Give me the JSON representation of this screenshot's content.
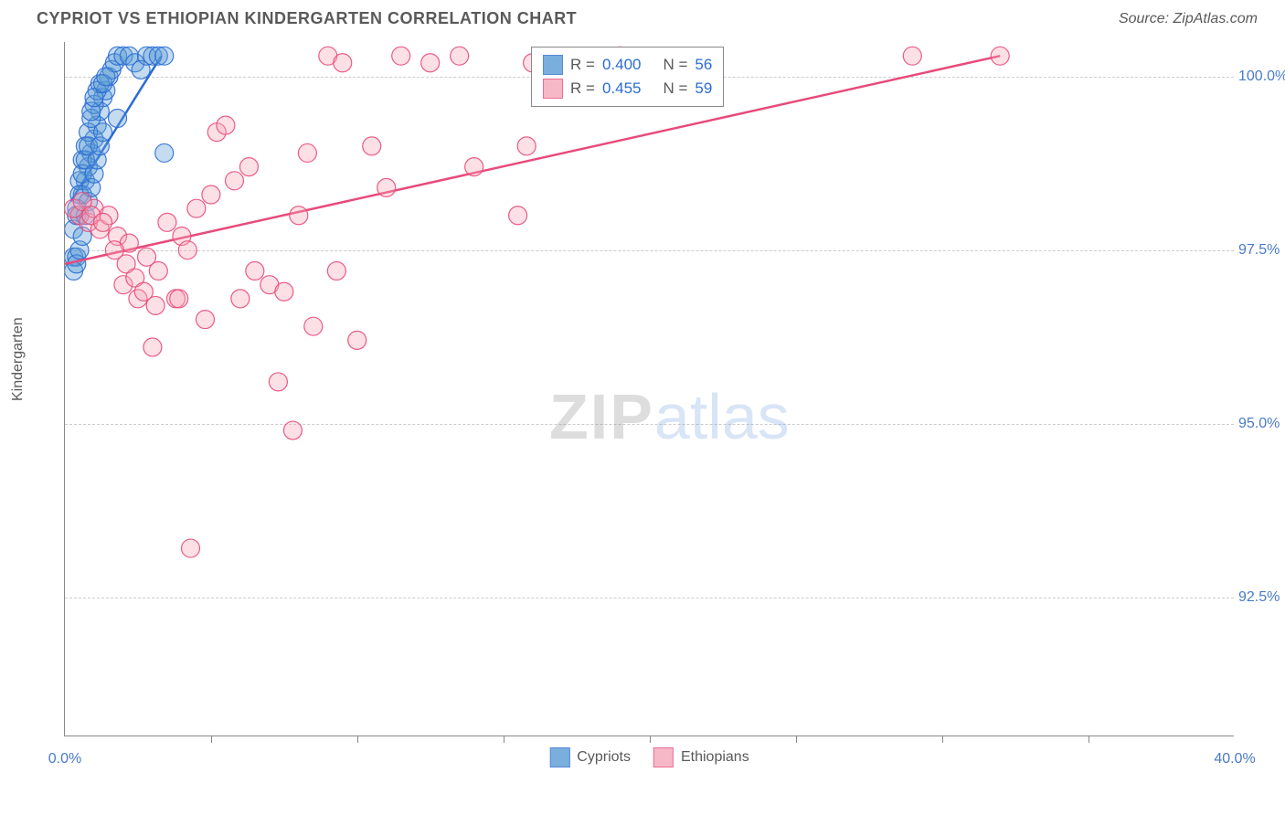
{
  "header": {
    "title": "CYPRIOT VS ETHIOPIAN KINDERGARTEN CORRELATION CHART",
    "source": "Source: ZipAtlas.com"
  },
  "chart": {
    "type": "scatter",
    "y_axis_label": "Kindergarten",
    "background_color": "#ffffff",
    "grid_color": "#cccccc",
    "axis_color": "#888888",
    "tick_label_color": "#4a7bc8",
    "text_color": "#5a5a5a",
    "xlim": [
      0.0,
      40.0
    ],
    "ylim": [
      90.5,
      100.5
    ],
    "x_ticks": [
      0.0,
      40.0
    ],
    "x_tick_labels": [
      "0.0%",
      "40.0%"
    ],
    "x_minor_ticks": [
      5,
      10,
      15,
      20,
      25,
      30,
      35
    ],
    "y_ticks": [
      92.5,
      95.0,
      97.5,
      100.0
    ],
    "y_tick_labels": [
      "92.5%",
      "95.0%",
      "97.5%",
      "100.0%"
    ],
    "marker_radius": 10,
    "marker_fill_opacity": 0.35,
    "marker_stroke_opacity": 0.9,
    "line_width": 2.5,
    "series": [
      {
        "name": "Cypriots",
        "color": "#5a9bd5",
        "stroke": "#2b6cd4",
        "stats": {
          "R_label": "R =",
          "R": "0.400",
          "N_label": "N =",
          "N": "56"
        },
        "trend": {
          "x1": 0.2,
          "y1": 98.2,
          "x2": 3.3,
          "y2": 100.3
        },
        "points": [
          [
            0.3,
            97.4
          ],
          [
            0.4,
            97.4
          ],
          [
            0.5,
            98.0
          ],
          [
            0.6,
            98.3
          ],
          [
            0.7,
            98.5
          ],
          [
            0.8,
            98.7
          ],
          [
            0.9,
            98.9
          ],
          [
            1.0,
            99.1
          ],
          [
            1.1,
            99.3
          ],
          [
            1.2,
            99.5
          ],
          [
            1.3,
            99.7
          ],
          [
            1.4,
            99.8
          ],
          [
            1.5,
            100.0
          ],
          [
            1.6,
            100.1
          ],
          [
            1.7,
            100.2
          ],
          [
            1.8,
            100.3
          ],
          [
            2.0,
            100.3
          ],
          [
            2.2,
            100.3
          ],
          [
            2.4,
            100.2
          ],
          [
            2.6,
            100.1
          ],
          [
            2.8,
            100.3
          ],
          [
            3.0,
            100.3
          ],
          [
            3.2,
            100.3
          ],
          [
            3.4,
            100.3
          ],
          [
            0.5,
            98.5
          ],
          [
            0.6,
            98.8
          ],
          [
            0.7,
            99.0
          ],
          [
            0.8,
            99.2
          ],
          [
            0.9,
            99.4
          ],
          [
            1.0,
            99.6
          ],
          [
            1.1,
            99.8
          ],
          [
            1.2,
            99.9
          ],
          [
            0.4,
            98.1
          ],
          [
            0.5,
            98.3
          ],
          [
            0.6,
            98.6
          ],
          [
            0.7,
            98.8
          ],
          [
            0.3,
            97.8
          ],
          [
            0.4,
            98.0
          ],
          [
            0.8,
            99.0
          ],
          [
            0.9,
            99.5
          ],
          [
            1.0,
            99.7
          ],
          [
            1.3,
            99.9
          ],
          [
            1.4,
            100.0
          ],
          [
            1.8,
            99.4
          ],
          [
            3.4,
            98.9
          ],
          [
            0.3,
            97.2
          ],
          [
            0.4,
            97.3
          ],
          [
            0.5,
            97.5
          ],
          [
            0.6,
            97.7
          ],
          [
            0.7,
            98.0
          ],
          [
            0.8,
            98.2
          ],
          [
            0.9,
            98.4
          ],
          [
            1.0,
            98.6
          ],
          [
            1.1,
            98.8
          ],
          [
            1.2,
            99.0
          ],
          [
            1.3,
            99.2
          ]
        ]
      },
      {
        "name": "Ethiopians",
        "color": "#f5a6b8",
        "stroke": "#e84a7a",
        "stats": {
          "R_label": "R =",
          "R": "0.455",
          "N_label": "N =",
          "N": "59"
        },
        "trend": {
          "x1": 0.0,
          "y1": 97.3,
          "x2": 32.0,
          "y2": 100.3
        },
        "points": [
          [
            0.5,
            98.0
          ],
          [
            0.8,
            97.9
          ],
          [
            1.0,
            98.1
          ],
          [
            1.2,
            97.8
          ],
          [
            1.5,
            98.0
          ],
          [
            1.8,
            97.7
          ],
          [
            2.0,
            97.0
          ],
          [
            2.2,
            97.6
          ],
          [
            2.5,
            96.8
          ],
          [
            2.8,
            97.4
          ],
          [
            3.0,
            96.1
          ],
          [
            3.2,
            97.2
          ],
          [
            3.5,
            97.9
          ],
          [
            3.8,
            96.8
          ],
          [
            4.0,
            97.7
          ],
          [
            4.3,
            93.2
          ],
          [
            4.5,
            98.1
          ],
          [
            4.8,
            96.5
          ],
          [
            5.0,
            98.3
          ],
          [
            5.2,
            99.2
          ],
          [
            5.5,
            99.3
          ],
          [
            5.8,
            98.5
          ],
          [
            6.0,
            96.8
          ],
          [
            6.3,
            98.7
          ],
          [
            6.5,
            97.2
          ],
          [
            7.0,
            97.0
          ],
          [
            7.3,
            95.6
          ],
          [
            7.5,
            96.9
          ],
          [
            7.8,
            94.9
          ],
          [
            8.0,
            98.0
          ],
          [
            8.3,
            98.9
          ],
          [
            8.5,
            96.4
          ],
          [
            9.0,
            100.3
          ],
          [
            9.3,
            97.2
          ],
          [
            9.5,
            100.2
          ],
          [
            10.0,
            96.2
          ],
          [
            10.5,
            99.0
          ],
          [
            11.0,
            98.4
          ],
          [
            11.5,
            100.3
          ],
          [
            12.5,
            100.2
          ],
          [
            13.5,
            100.3
          ],
          [
            14.0,
            98.7
          ],
          [
            15.5,
            98.0
          ],
          [
            15.8,
            99.0
          ],
          [
            16.0,
            100.2
          ],
          [
            19.0,
            100.3
          ],
          [
            29.0,
            100.3
          ],
          [
            32.0,
            100.3
          ],
          [
            0.3,
            98.1
          ],
          [
            0.6,
            98.2
          ],
          [
            0.9,
            98.0
          ],
          [
            1.3,
            97.9
          ],
          [
            1.7,
            97.5
          ],
          [
            2.1,
            97.3
          ],
          [
            2.4,
            97.1
          ],
          [
            2.7,
            96.9
          ],
          [
            3.1,
            96.7
          ],
          [
            3.9,
            96.8
          ],
          [
            4.2,
            97.5
          ]
        ]
      }
    ],
    "stats_box": {
      "label_R": "R =",
      "label_N": "N ="
    },
    "bottom_legend": [
      "Cypriots",
      "Ethiopians"
    ],
    "watermark": {
      "part1": "ZIP",
      "part2": "atlas"
    }
  }
}
